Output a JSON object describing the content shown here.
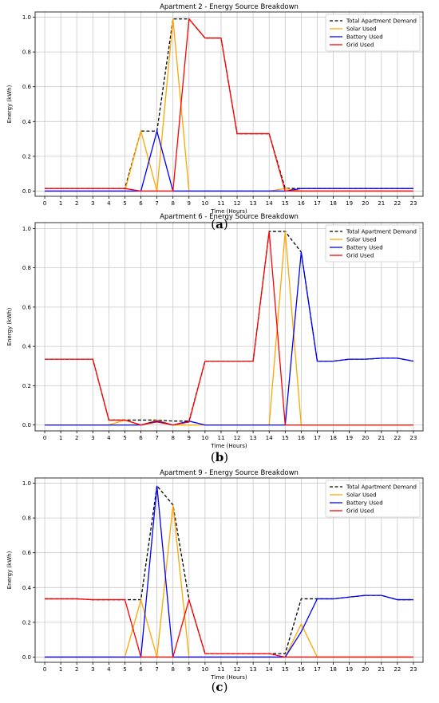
{
  "chart_data": [
    {
      "type": "line",
      "title": "Apartment 2 - Energy Source Breakdown",
      "xlabel": "Time (Hours)",
      "ylabel": "Energy (kWh)",
      "caption": {
        "open": "(",
        "letter": "a",
        "close": ")"
      },
      "x": [
        0,
        1,
        2,
        3,
        4,
        5,
        6,
        7,
        8,
        9,
        10,
        11,
        12,
        13,
        14,
        15,
        16,
        17,
        18,
        19,
        20,
        21,
        22,
        23
      ],
      "xlim": [
        -0.6,
        23.6
      ],
      "ylim": [
        -0.03,
        1.03
      ],
      "yticks": [
        0.0,
        0.2,
        0.4,
        0.6,
        0.8,
        1.0
      ],
      "grid": true,
      "legend_position": "top-right",
      "series": [
        {
          "name": "Total Apartment Demand",
          "color": "#000000",
          "dashed": true,
          "values": [
            0.015,
            0.015,
            0.015,
            0.015,
            0.015,
            0.015,
            0.345,
            0.345,
            0.99,
            0.99,
            0.88,
            0.88,
            0.33,
            0.33,
            0.33,
            0.015,
            0.015,
            0.015,
            0.015,
            0.015,
            0.015,
            0.015,
            0.015,
            0.015
          ]
        },
        {
          "name": "Solar Used",
          "color": "#FFA500",
          "dashed": false,
          "values": [
            0,
            0,
            0,
            0,
            0,
            0,
            0.345,
            0,
            0.99,
            0,
            0,
            0,
            0,
            0,
            0,
            0.015,
            0,
            0,
            0,
            0,
            0,
            0,
            0,
            0
          ]
        },
        {
          "name": "Battery Used",
          "color": "#0000FF",
          "dashed": false,
          "values": [
            0,
            0,
            0,
            0,
            0,
            0,
            0,
            0.345,
            0,
            0,
            0,
            0,
            0,
            0,
            0,
            0,
            0.015,
            0.015,
            0.015,
            0.015,
            0.015,
            0.015,
            0.015,
            0.015
          ]
        },
        {
          "name": "Grid Used",
          "color": "#FF0000",
          "dashed": false,
          "values": [
            0.015,
            0.015,
            0.015,
            0.015,
            0.015,
            0.015,
            0,
            0,
            0,
            0.99,
            0.88,
            0.88,
            0.33,
            0.33,
            0.33,
            0,
            0,
            0,
            0,
            0,
            0,
            0,
            0,
            0
          ]
        }
      ]
    },
    {
      "type": "line",
      "title": "Apartment 6 - Energy Source Breakdown",
      "xlabel": "Time (Hours)",
      "ylabel": "Energy (kWh)",
      "caption": {
        "open": "(",
        "letter": "b",
        "close": ")"
      },
      "x": [
        0,
        1,
        2,
        3,
        4,
        5,
        6,
        7,
        8,
        9,
        10,
        11,
        12,
        13,
        14,
        15,
        16,
        17,
        18,
        19,
        20,
        21,
        22,
        23
      ],
      "xlim": [
        -0.6,
        23.6
      ],
      "ylim": [
        -0.03,
        1.03
      ],
      "yticks": [
        0.0,
        0.2,
        0.4,
        0.6,
        0.8,
        1.0
      ],
      "grid": true,
      "legend_position": "top-right",
      "series": [
        {
          "name": "Total Apartment Demand",
          "color": "#000000",
          "dashed": true,
          "values": [
            0.335,
            0.335,
            0.335,
            0.335,
            0.025,
            0.025,
            0.025,
            0.025,
            0.02,
            0.02,
            0.325,
            0.325,
            0.325,
            0.325,
            0.985,
            0.985,
            0.88,
            0.325,
            0.325,
            0.335,
            0.335,
            0.34,
            0.34,
            0.325
          ]
        },
        {
          "name": "Solar Used",
          "color": "#FFA500",
          "dashed": false,
          "values": [
            0,
            0,
            0,
            0,
            0,
            0.025,
            0,
            0.025,
            0,
            0,
            0,
            0,
            0,
            0,
            0,
            0.985,
            0,
            0,
            0,
            0,
            0,
            0,
            0,
            0
          ]
        },
        {
          "name": "Battery Used",
          "color": "#0000FF",
          "dashed": false,
          "values": [
            0,
            0,
            0,
            0,
            0,
            0,
            0,
            0.02,
            0,
            0.02,
            0,
            0,
            0,
            0,
            0,
            0,
            0.88,
            0.325,
            0.325,
            0.335,
            0.335,
            0.34,
            0.34,
            0.325
          ]
        },
        {
          "name": "Grid Used",
          "color": "#FF0000",
          "dashed": false,
          "values": [
            0.335,
            0.335,
            0.335,
            0.335,
            0.025,
            0.025,
            0,
            0.015,
            0,
            0.015,
            0.325,
            0.325,
            0.325,
            0.325,
            0.985,
            0,
            0,
            0,
            0,
            0,
            0,
            0,
            0,
            0
          ]
        }
      ]
    },
    {
      "type": "line",
      "title": "Apartment 9 - Energy Source Breakdown",
      "xlabel": "Time (Hours)",
      "ylabel": "Energy (kWh)",
      "caption": {
        "open": "(",
        "letter": "c",
        "close": ")"
      },
      "x": [
        0,
        1,
        2,
        3,
        4,
        5,
        6,
        7,
        8,
        9,
        10,
        11,
        12,
        13,
        14,
        15,
        16,
        17,
        18,
        19,
        20,
        21,
        22,
        23
      ],
      "xlim": [
        -0.6,
        23.6
      ],
      "ylim": [
        -0.03,
        1.03
      ],
      "yticks": [
        0.0,
        0.2,
        0.4,
        0.6,
        0.8,
        1.0
      ],
      "grid": true,
      "legend_position": "top-right",
      "series": [
        {
          "name": "Total Apartment Demand",
          "color": "#000000",
          "dashed": true,
          "values": [
            0.335,
            0.335,
            0.335,
            0.33,
            0.33,
            0.33,
            0.33,
            0.985,
            0.875,
            0.33,
            0.02,
            0.02,
            0.02,
            0.02,
            0.02,
            0.02,
            0.335,
            0.335,
            0.335,
            0.345,
            0.355,
            0.355,
            0.33,
            0.33
          ]
        },
        {
          "name": "Solar Used",
          "color": "#FFA500",
          "dashed": false,
          "values": [
            0,
            0,
            0,
            0,
            0,
            0,
            0.33,
            0,
            0.875,
            0,
            0,
            0,
            0,
            0,
            0,
            0,
            0.19,
            0,
            0,
            0,
            0,
            0,
            0,
            0
          ]
        },
        {
          "name": "Battery Used",
          "color": "#0000FF",
          "dashed": false,
          "values": [
            0,
            0,
            0,
            0,
            0,
            0,
            0,
            0.985,
            0,
            0,
            0,
            0,
            0,
            0,
            0,
            0,
            0.145,
            0.335,
            0.335,
            0.345,
            0.355,
            0.355,
            0.33,
            0.33
          ]
        },
        {
          "name": "Grid Used",
          "color": "#FF0000",
          "dashed": false,
          "values": [
            0.335,
            0.335,
            0.335,
            0.33,
            0.33,
            0.33,
            0,
            0,
            0,
            0.33,
            0.02,
            0.02,
            0.02,
            0.02,
            0.02,
            0,
            0,
            0,
            0,
            0,
            0,
            0,
            0,
            0
          ]
        }
      ]
    }
  ]
}
